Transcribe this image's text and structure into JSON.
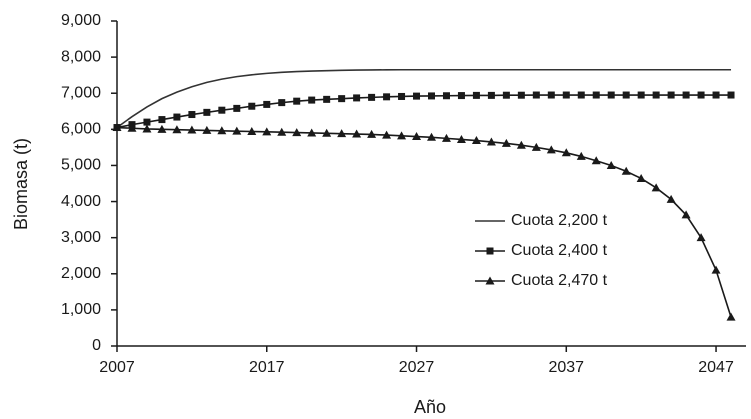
{
  "chart_data": {
    "type": "line",
    "x_label": "Año",
    "y_label": "Biomasa (t)",
    "x": [
      2007,
      2008,
      2009,
      2010,
      2011,
      2012,
      2013,
      2014,
      2015,
      2016,
      2017,
      2018,
      2019,
      2020,
      2021,
      2022,
      2023,
      2024,
      2025,
      2026,
      2027,
      2028,
      2029,
      2030,
      2031,
      2032,
      2033,
      2034,
      2035,
      2036,
      2037,
      2038,
      2039,
      2040,
      2041,
      2042,
      2043,
      2044,
      2045,
      2046,
      2047,
      2048
    ],
    "series": [
      {
        "name": "Cuota 2,200 t",
        "color": "#333333",
        "marker": "none",
        "values": [
          6050,
          6350,
          6620,
          6850,
          7030,
          7180,
          7300,
          7390,
          7460,
          7510,
          7550,
          7580,
          7600,
          7615,
          7625,
          7635,
          7640,
          7645,
          7648,
          7650,
          7650,
          7650,
          7650,
          7650,
          7650,
          7650,
          7650,
          7650,
          7650,
          7650,
          7650,
          7650,
          7650,
          7650,
          7650,
          7650,
          7650,
          7650,
          7650,
          7650,
          7650,
          7650
        ]
      },
      {
        "name": "Cuota 2,400 t",
        "color": "#1a1a1a",
        "marker": "square",
        "values": [
          6050,
          6130,
          6200,
          6270,
          6340,
          6410,
          6470,
          6530,
          6580,
          6640,
          6690,
          6740,
          6780,
          6810,
          6830,
          6850,
          6870,
          6885,
          6900,
          6910,
          6920,
          6925,
          6930,
          6935,
          6940,
          6940,
          6945,
          6945,
          6950,
          6950,
          6950,
          6950,
          6950,
          6950,
          6950,
          6950,
          6950,
          6950,
          6950,
          6950,
          6950,
          6950
        ]
      },
      {
        "name": "Cuota 2,470 t",
        "color": "#1a1a1a",
        "marker": "triangle",
        "values": [
          6050,
          6030,
          6010,
          6000,
          5990,
          5980,
          5970,
          5960,
          5950,
          5940,
          5930,
          5920,
          5910,
          5900,
          5890,
          5880,
          5870,
          5860,
          5840,
          5820,
          5800,
          5780,
          5750,
          5720,
          5690,
          5650,
          5610,
          5560,
          5500,
          5430,
          5350,
          5250,
          5130,
          5000,
          4840,
          4640,
          4380,
          4060,
          3630,
          3000,
          2100,
          800
        ]
      }
    ],
    "xlim": [
      2007,
      2049
    ],
    "xticks": [
      2007,
      2017,
      2027,
      2037,
      2047
    ],
    "ylim": [
      0,
      9000
    ],
    "yticks": [
      0,
      {
        "value": 1000,
        "label": "1,000"
      },
      {
        "value": 2000,
        "label": "2,000"
      },
      {
        "value": 3000,
        "label": "3,000"
      },
      {
        "value": 4000,
        "label": "4,000"
      },
      {
        "value": 5000,
        "label": "5,000"
      },
      {
        "value": 6000,
        "label": "6,000"
      },
      {
        "value": 7000,
        "label": "7,000"
      },
      {
        "value": 8000,
        "label": "8,000"
      },
      {
        "value": 9000,
        "label": "9,000"
      }
    ],
    "grid": false,
    "legend": "lower right"
  }
}
